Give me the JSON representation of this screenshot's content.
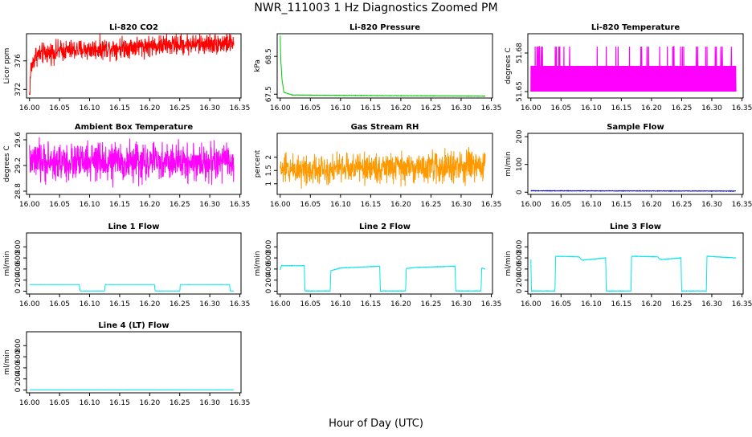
{
  "title": "NWR_111003  1 Hz Diagnostics Zoomed PM",
  "xlabel": "Hour of Day (UTC)",
  "chart_data": [
    {
      "type": "line",
      "title": "Li-820 CO2",
      "ylabel": "Licor ppm",
      "color": "#ff0000",
      "ylim": [
        370.8,
        379.8
      ],
      "yticks": [
        372,
        376
      ],
      "xticks": [
        "16.00",
        "16.05",
        "16.10",
        "16.15",
        "16.20",
        "16.25",
        "16.30",
        "16.35"
      ],
      "xlim": [
        15.995,
        16.352
      ],
      "x_start": 16.0,
      "x_end": 16.34,
      "noise": "high",
      "series": [
        {
          "name": "CO2",
          "points": [
            [
              16.0,
              371.0
            ],
            [
              16.002,
              374.8
            ],
            [
              16.01,
              376.8
            ],
            [
              16.05,
              377.4
            ],
            [
              16.1,
              377.6
            ],
            [
              16.15,
              377.9
            ],
            [
              16.2,
              378.1
            ],
            [
              16.25,
              378.3
            ],
            [
              16.3,
              378.4
            ],
            [
              16.34,
              378.5
            ]
          ],
          "spread": 0.9
        }
      ]
    },
    {
      "type": "line",
      "title": "Li-820 Pressure",
      "ylabel": "kPa",
      "color": "#00cc00",
      "ylim": [
        67.4,
        69.1
      ],
      "yticks": [
        67.5,
        68.5
      ],
      "xticks": [
        "16.00",
        "16.05",
        "16.10",
        "16.15",
        "16.20",
        "16.25",
        "16.30",
        "16.35"
      ],
      "xlim": [
        15.995,
        16.352
      ],
      "x_start": 16.0,
      "x_end": 16.34,
      "noise": "low",
      "series": [
        {
          "name": "Pressure",
          "points": [
            [
              16.0,
              69.05
            ],
            [
              16.001,
              68.4
            ],
            [
              16.003,
              67.9
            ],
            [
              16.006,
              67.55
            ],
            [
              16.02,
              67.48
            ],
            [
              16.1,
              67.47
            ],
            [
              16.2,
              67.46
            ],
            [
              16.34,
              67.45
            ]
          ],
          "spread": 0.01
        }
      ]
    },
    {
      "type": "step",
      "title": "Li-820 Temperature",
      "ylabel": "degrees C",
      "color": "#ff00ff",
      "ylim": [
        51.645,
        51.695
      ],
      "yticks": [
        51.65,
        51.68
      ],
      "xticks": [
        "16.00",
        "16.05",
        "16.10",
        "16.15",
        "16.20",
        "16.25",
        "16.30",
        "16.35"
      ],
      "xlim": [
        15.995,
        16.352
      ],
      "x_start": 16.0,
      "x_end": 16.34,
      "noise": "band",
      "series": [
        {
          "name": "Temperature",
          "points": [
            [
              16.0,
              51.65
            ],
            [
              16.34,
              51.67
            ]
          ],
          "spread": 0.0
        }
      ]
    },
    {
      "type": "line",
      "title": "Ambient Box Temperature",
      "ylabel": "degrees C",
      "color": "#ff00ff",
      "ylim": [
        28.75,
        29.7
      ],
      "yticks": [
        28.8,
        29.2,
        29.6
      ],
      "xticks": [
        "16.00",
        "16.05",
        "16.10",
        "16.15",
        "16.20",
        "16.25",
        "16.30",
        "16.35"
      ],
      "xlim": [
        15.995,
        16.352
      ],
      "x_start": 16.0,
      "x_end": 16.34,
      "noise": "high",
      "series": [
        {
          "name": "Ambient",
          "points": [
            [
              16.0,
              29.25
            ],
            [
              16.34,
              29.25
            ]
          ],
          "spread": 0.18
        }
      ]
    },
    {
      "type": "line",
      "title": "Gas Stream RH",
      "ylabel": "percent",
      "color": "#ff9900",
      "ylim": [
        0.6,
        2.9
      ],
      "yticks": [
        1.0,
        1.5,
        2.0
      ],
      "xticks": [
        "16.00",
        "16.05",
        "16.10",
        "16.15",
        "16.20",
        "16.25",
        "16.30",
        "16.35"
      ],
      "xlim": [
        15.995,
        16.352
      ],
      "x_start": 16.0,
      "x_end": 16.34,
      "noise": "high",
      "series": [
        {
          "name": "RH",
          "points": [
            [
              16.0,
              1.55
            ],
            [
              16.34,
              1.65
            ]
          ],
          "spread": 0.35
        }
      ]
    },
    {
      "type": "line",
      "title": "Sample Flow",
      "ylabel": "ml/min",
      "color": "#0000cc",
      "ylim": [
        -8,
        212
      ],
      "yticks": [
        0,
        100,
        200
      ],
      "xticks": [
        "16.00",
        "16.05",
        "16.10",
        "16.15",
        "16.20",
        "16.25",
        "16.30",
        "16.35"
      ],
      "xlim": [
        15.995,
        16.352
      ],
      "x_start": 16.0,
      "x_end": 16.34,
      "noise": "low",
      "series": [
        {
          "name": "Sample",
          "points": [
            [
              16.0,
              5
            ],
            [
              16.34,
              4
            ]
          ],
          "spread": 1.5
        }
      ]
    },
    {
      "type": "line",
      "title": "Line 1 Flow",
      "ylabel": "ml/min",
      "color": "#00e5ee",
      "ylim": [
        -50,
        1050
      ],
      "yticks": [
        0,
        200,
        400,
        600,
        800
      ],
      "xticks": [
        "16.00",
        "16.05",
        "16.10",
        "16.15",
        "16.20",
        "16.25",
        "16.30",
        "16.35"
      ],
      "xlim": [
        15.995,
        16.352
      ],
      "x_start": 16.0,
      "x_end": 16.34,
      "noise": "low",
      "series": [
        {
          "name": "Line 1",
          "points": [
            [
              16.0,
              120
            ],
            [
              16.083,
              120
            ],
            [
              16.084,
              5
            ],
            [
              16.125,
              5
            ],
            [
              16.126,
              120
            ],
            [
              16.208,
              120
            ],
            [
              16.209,
              5
            ],
            [
              16.25,
              5
            ],
            [
              16.251,
              120
            ],
            [
              16.333,
              120
            ],
            [
              16.334,
              5
            ],
            [
              16.34,
              5
            ]
          ],
          "spread": 3
        }
      ]
    },
    {
      "type": "line",
      "title": "Line 2 Flow",
      "ylabel": "ml/min",
      "color": "#00e5ee",
      "ylim": [
        -50,
        1050
      ],
      "yticks": [
        0,
        200,
        400,
        600,
        800
      ],
      "xticks": [
        "16.00",
        "16.05",
        "16.10",
        "16.15",
        "16.20",
        "16.25",
        "16.30",
        "16.35"
      ],
      "xlim": [
        15.995,
        16.352
      ],
      "x_start": 16.0,
      "x_end": 16.34,
      "noise": "low",
      "series": [
        {
          "name": "Line 2",
          "points": [
            [
              16.0,
              380
            ],
            [
              16.002,
              460
            ],
            [
              16.04,
              460
            ],
            [
              16.041,
              5
            ],
            [
              16.083,
              5
            ],
            [
              16.084,
              370
            ],
            [
              16.1,
              420
            ],
            [
              16.165,
              450
            ],
            [
              16.166,
              5
            ],
            [
              16.208,
              5
            ],
            [
              16.209,
              410
            ],
            [
              16.225,
              430
            ],
            [
              16.29,
              450
            ],
            [
              16.291,
              5
            ],
            [
              16.333,
              5
            ],
            [
              16.334,
              420
            ],
            [
              16.34,
              400
            ]
          ],
          "spread": 8
        }
      ]
    },
    {
      "type": "line",
      "title": "Line 3 Flow",
      "ylabel": "ml/min",
      "color": "#00e5ee",
      "ylim": [
        -50,
        1050
      ],
      "yticks": [
        0,
        200,
        400,
        600,
        800
      ],
      "xticks": [
        "16.00",
        "16.05",
        "16.10",
        "16.15",
        "16.20",
        "16.25",
        "16.30",
        "16.35"
      ],
      "xlim": [
        15.995,
        16.352
      ],
      "x_start": 16.0,
      "x_end": 16.34,
      "noise": "low",
      "series": [
        {
          "name": "Line 3",
          "points": [
            [
              16.0,
              580
            ],
            [
              16.001,
              5
            ],
            [
              16.04,
              5
            ],
            [
              16.041,
              630
            ],
            [
              16.08,
              620
            ],
            [
              16.085,
              560
            ],
            [
              16.124,
              600
            ],
            [
              16.125,
              5
            ],
            [
              16.166,
              5
            ],
            [
              16.167,
              630
            ],
            [
              16.21,
              620
            ],
            [
              16.215,
              570
            ],
            [
              16.249,
              600
            ],
            [
              16.25,
              5
            ],
            [
              16.291,
              5
            ],
            [
              16.292,
              630
            ],
            [
              16.34,
              600
            ]
          ],
          "spread": 8
        }
      ]
    },
    {
      "type": "line",
      "title": "Line 4 (LT) Flow",
      "ylabel": "ml/min",
      "color": "#00e5ee",
      "ylim": [
        -50,
        1050
      ],
      "yticks": [
        0,
        200,
        400,
        600,
        800
      ],
      "xticks": [
        "16.00",
        "16.05",
        "16.10",
        "16.15",
        "16.20",
        "16.25",
        "16.30",
        "16.35"
      ],
      "xlim": [
        15.995,
        16.352
      ],
      "x_start": 16.0,
      "x_end": 16.34,
      "noise": "low",
      "series": [
        {
          "name": "Line 4",
          "points": [
            [
              16.0,
              3
            ],
            [
              16.34,
              3
            ]
          ],
          "spread": 1
        }
      ]
    }
  ]
}
